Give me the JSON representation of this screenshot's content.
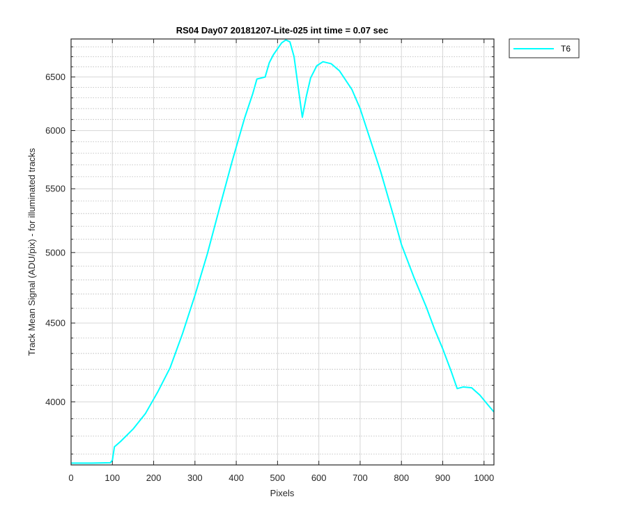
{
  "chart_data": {
    "type": "line",
    "title": "RS04 Day07 20181207-Lite-025 int time = 0.07 sec",
    "xlabel": "Pixels",
    "ylabel": "Track Mean Signal (ADU/pix) - for illuminated tracks",
    "xlim": [
      0,
      1024
    ],
    "ylim": [
      3640,
      6880
    ],
    "yscale": "log",
    "grid": true,
    "minor_grid": true,
    "legend_position": "outside-top-right",
    "x_ticks": [
      0,
      100,
      200,
      300,
      400,
      500,
      600,
      700,
      800,
      900,
      1000
    ],
    "x_tick_labels": [
      "0",
      "100",
      "200",
      "300",
      "400",
      "500",
      "600",
      "700",
      "800",
      "900",
      "1000"
    ],
    "y_ticks": [
      4000,
      4500,
      5000,
      5500,
      6000,
      6500
    ],
    "y_tick_labels": [
      "4000",
      "4500",
      "5000",
      "5500",
      "6000",
      "6500"
    ],
    "series": [
      {
        "name": "T6",
        "color": "#00ffff",
        "points": [
          [
            0,
            3650
          ],
          [
            50,
            3650
          ],
          [
            95,
            3652
          ],
          [
            100,
            3665
          ],
          [
            105,
            3740
          ],
          [
            120,
            3770
          ],
          [
            150,
            3840
          ],
          [
            180,
            3930
          ],
          [
            210,
            4060
          ],
          [
            240,
            4210
          ],
          [
            270,
            4430
          ],
          [
            300,
            4690
          ],
          [
            330,
            4990
          ],
          [
            360,
            5350
          ],
          [
            390,
            5730
          ],
          [
            420,
            6110
          ],
          [
            440,
            6340
          ],
          [
            450,
            6480
          ],
          [
            460,
            6490
          ],
          [
            470,
            6500
          ],
          [
            480,
            6640
          ],
          [
            490,
            6720
          ],
          [
            500,
            6780
          ],
          [
            510,
            6840
          ],
          [
            520,
            6870
          ],
          [
            530,
            6850
          ],
          [
            540,
            6700
          ],
          [
            550,
            6400
          ],
          [
            560,
            6120
          ],
          [
            570,
            6320
          ],
          [
            580,
            6490
          ],
          [
            595,
            6610
          ],
          [
            610,
            6650
          ],
          [
            630,
            6630
          ],
          [
            650,
            6560
          ],
          [
            680,
            6380
          ],
          [
            700,
            6200
          ],
          [
            720,
            5970
          ],
          [
            750,
            5640
          ],
          [
            780,
            5290
          ],
          [
            800,
            5060
          ],
          [
            830,
            4820
          ],
          [
            860,
            4610
          ],
          [
            880,
            4460
          ],
          [
            900,
            4330
          ],
          [
            920,
            4190
          ],
          [
            935,
            4080
          ],
          [
            950,
            4090
          ],
          [
            970,
            4085
          ],
          [
            990,
            4040
          ],
          [
            1010,
            3980
          ],
          [
            1024,
            3940
          ]
        ]
      }
    ]
  }
}
